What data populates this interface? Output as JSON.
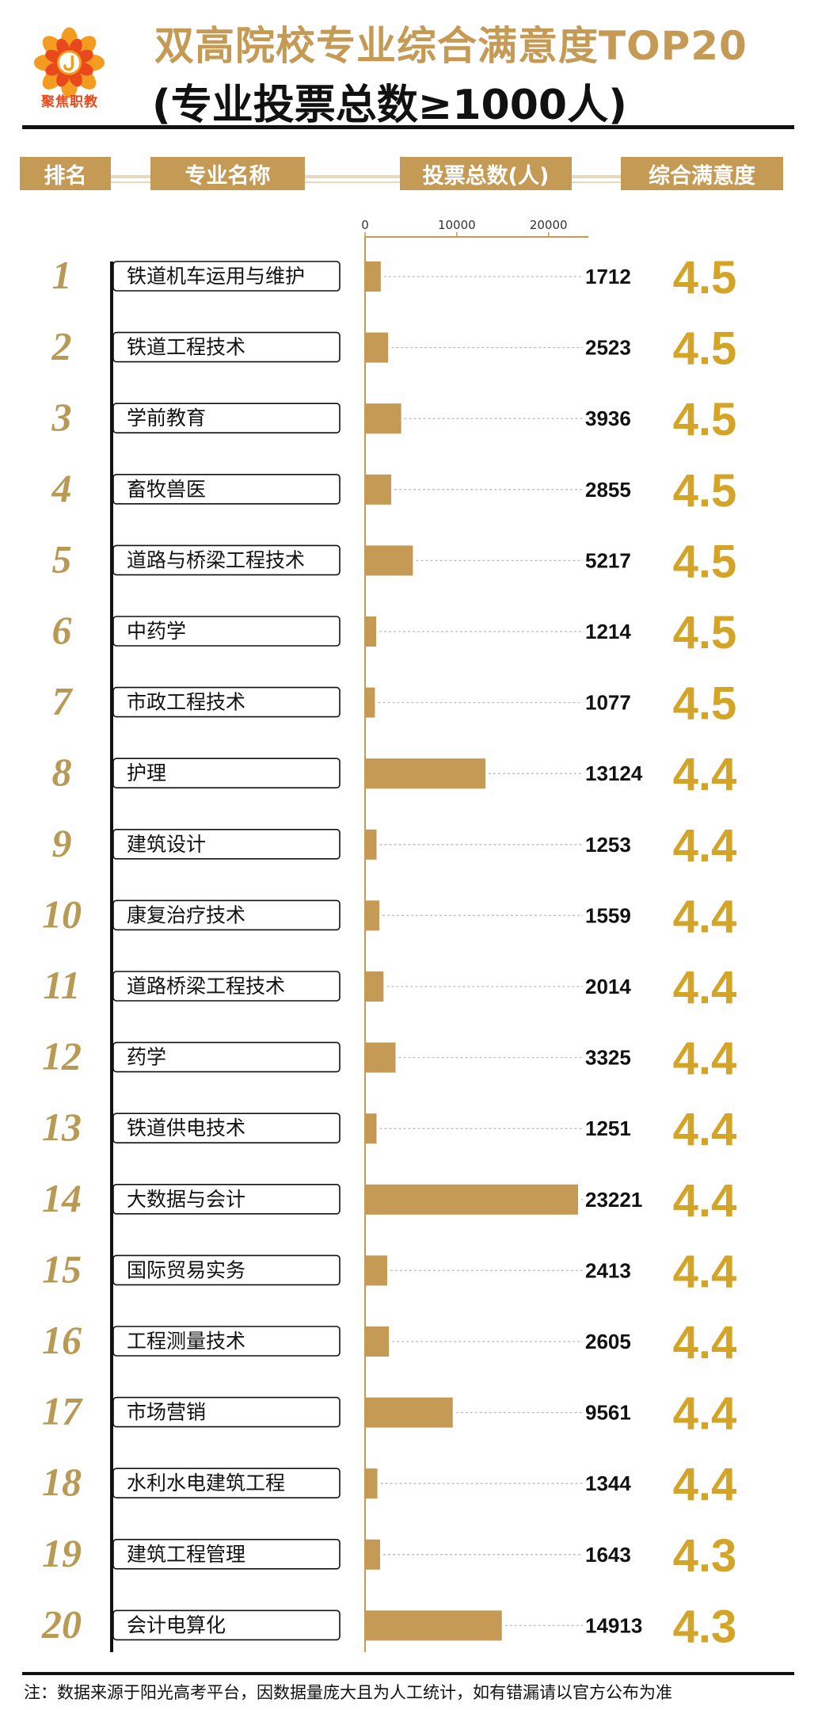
{
  "header": {
    "logo_text": "聚焦职教",
    "title_line1": "双高院校专业综合满意度TOP20",
    "title_line2": "(专业投票总数≥1000人)",
    "col_rank": "排名",
    "col_name": "专业名称",
    "col_votes": "投票总数(人)",
    "col_score": "综合满意度"
  },
  "colors": {
    "gold": "#c49a55",
    "score": "#d4a426",
    "rank": "#b89a55"
  },
  "chart_data": {
    "type": "bar",
    "orientation": "horizontal",
    "xlim": [
      0,
      23221
    ],
    "x_ticks": [
      0,
      10000,
      20000
    ],
    "x_tick_labels": [
      "0",
      "10000",
      "20000"
    ],
    "rows": [
      {
        "rank": "1",
        "name": "铁道机车运用与维护",
        "votes": 1712,
        "votes_label": "1712",
        "score": "4.5"
      },
      {
        "rank": "2",
        "name": "铁道工程技术",
        "votes": 2523,
        "votes_label": "2523",
        "score": "4.5"
      },
      {
        "rank": "3",
        "name": "学前教育",
        "votes": 3936,
        "votes_label": "3936",
        "score": "4.5"
      },
      {
        "rank": "4",
        "name": "畜牧兽医",
        "votes": 2855,
        "votes_label": "2855",
        "score": "4.5"
      },
      {
        "rank": "5",
        "name": "道路与桥梁工程技术",
        "votes": 5217,
        "votes_label": "5217",
        "score": "4.5"
      },
      {
        "rank": "6",
        "name": "中药学",
        "votes": 1214,
        "votes_label": "1214",
        "score": "4.5"
      },
      {
        "rank": "7",
        "name": "市政工程技术",
        "votes": 1077,
        "votes_label": "1077",
        "score": "4.5"
      },
      {
        "rank": "8",
        "name": "护理",
        "votes": 13124,
        "votes_label": "13124",
        "score": "4.4"
      },
      {
        "rank": "9",
        "name": "建筑设计",
        "votes": 1253,
        "votes_label": "1253",
        "score": "4.4"
      },
      {
        "rank": "10",
        "name": "康复治疗技术",
        "votes": 1559,
        "votes_label": "1559",
        "score": "4.4"
      },
      {
        "rank": "11",
        "name": "道路桥梁工程技术",
        "votes": 2014,
        "votes_label": "2014",
        "score": "4.4"
      },
      {
        "rank": "12",
        "name": "药学",
        "votes": 3325,
        "votes_label": "3325",
        "score": "4.4"
      },
      {
        "rank": "13",
        "name": "铁道供电技术",
        "votes": 1251,
        "votes_label": "1251",
        "score": "4.4"
      },
      {
        "rank": "14",
        "name": "大数据与会计",
        "votes": 23221,
        "votes_label": "23221",
        "score": "4.4"
      },
      {
        "rank": "15",
        "name": "国际贸易实务",
        "votes": 2413,
        "votes_label": "2413",
        "score": "4.4"
      },
      {
        "rank": "16",
        "name": "工程测量技术",
        "votes": 2605,
        "votes_label": "2605",
        "score": "4.4"
      },
      {
        "rank": "17",
        "name": "市场营销",
        "votes": 9561,
        "votes_label": "9561",
        "score": "4.4"
      },
      {
        "rank": "18",
        "name": "水利水电建筑工程",
        "votes": 1344,
        "votes_label": "1344",
        "score": "4.4"
      },
      {
        "rank": "19",
        "name": "建筑工程管理",
        "votes": 1643,
        "votes_label": "1643",
        "score": "4.3"
      },
      {
        "rank": "20",
        "name": "会计电算化",
        "votes": 14913,
        "votes_label": "14913",
        "score": "4.3"
      }
    ]
  },
  "footer": {
    "note": "注：数据来源于阳光高考平台，因数据量庞大且为人工统计，如有错漏请以官方公布为准"
  }
}
